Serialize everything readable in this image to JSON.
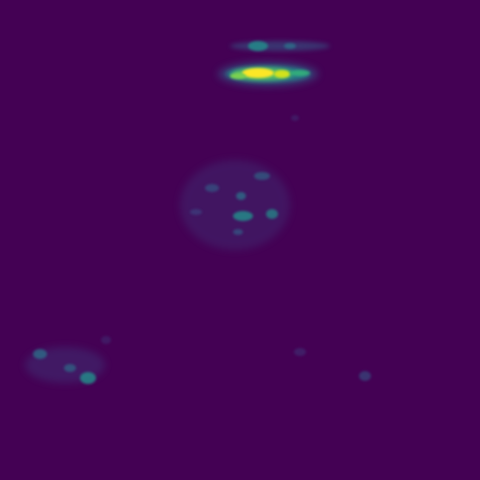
{
  "image": {
    "colormap": "viridis",
    "background_color": "#440154",
    "palette": {
      "low": "#440154",
      "mid_low": "#31688e",
      "mid": "#21918c",
      "mid_high": "#5ec962",
      "high": "#fde725"
    }
  }
}
